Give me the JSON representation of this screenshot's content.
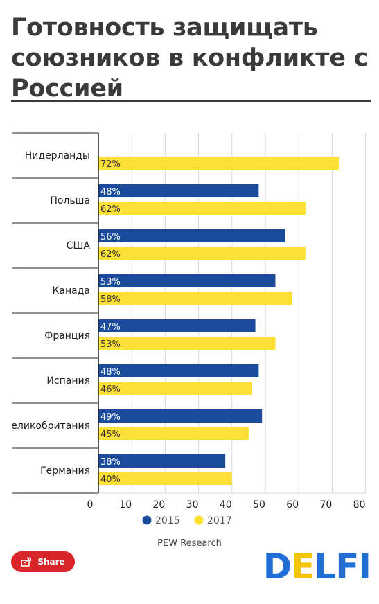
{
  "title": "Готовность защищать союзников в конфликте с Россией",
  "source": "PEW Research",
  "share_label": "Share",
  "logo": {
    "part1": "D",
    "part2": "E",
    "part3": "LFI"
  },
  "colors": {
    "series2015": "#1a4a9a",
    "series2017": "#fde035",
    "grid": "#d9d9d9",
    "text": "#222222"
  },
  "chart_data": {
    "type": "bar",
    "orientation": "horizontal",
    "title": "Готовность защищать союзников в конфликте с Россией",
    "categories": [
      "Нидерланды",
      "Польша",
      "США",
      "Канада",
      "Франция",
      "Испания",
      "еликобритания",
      "Германия"
    ],
    "series": [
      {
        "name": "2015",
        "values": [
          null,
          48,
          56,
          53,
          47,
          48,
          49,
          38
        ]
      },
      {
        "name": "2017",
        "values": [
          72,
          62,
          62,
          58,
          53,
          46,
          45,
          40
        ]
      }
    ],
    "value_labels": {
      "2015": [
        "",
        "48%",
        "56%",
        "53%",
        "47%",
        "48%",
        "49%",
        "38%"
      ],
      "2017": [
        "72%",
        "62%",
        "62%",
        "58%",
        "53%",
        "46%",
        "45%",
        "40%"
      ]
    },
    "xlim": [
      0,
      80
    ],
    "xticks": [
      "0",
      "10",
      "20",
      "30",
      "40",
      "50",
      "60",
      "70",
      "80"
    ],
    "grid": true,
    "legend": {
      "position": "bottom",
      "entries": [
        "2015",
        "2017"
      ]
    }
  }
}
